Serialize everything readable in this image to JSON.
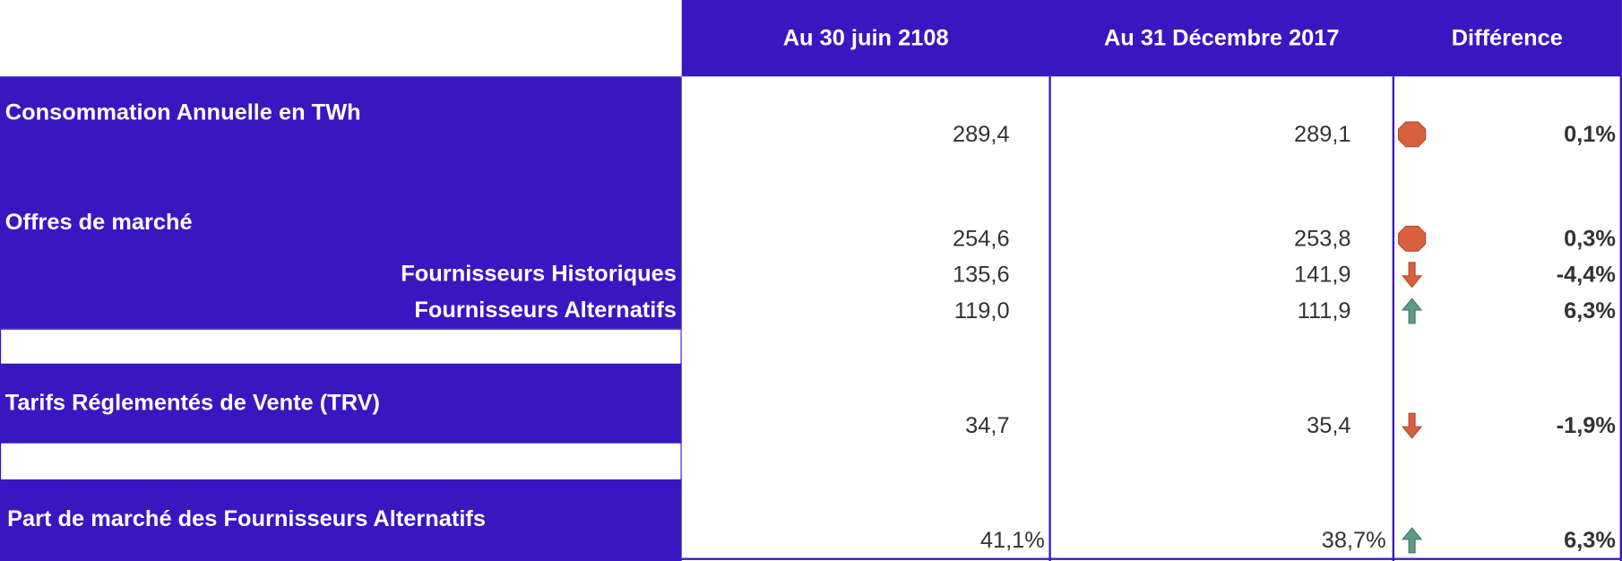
{
  "colors": {
    "header_bg": "#3A16C1",
    "text": "#333333",
    "label_text": "#FFFFFF",
    "neutral": "#D9603F",
    "down": "#D9603F",
    "up": "#5E9C86"
  },
  "header": {
    "col1": "Au 30 juin 2108",
    "col2": "Au 31 Décembre 2017",
    "col3": "Différence"
  },
  "rows": {
    "consommation": {
      "label": "Consommation Annuelle en TWh",
      "v1": "289,4",
      "v2": "289,1",
      "trend": "neutral-circle-icon",
      "diff": "0,1%"
    },
    "offres": {
      "label": "Offres de marché",
      "v1": "254,6",
      "v2": "253,8",
      "trend": "neutral-circle-icon",
      "diff": "0,3%"
    },
    "historiques": {
      "label": "Fournisseurs Historiques",
      "v1": "135,6",
      "v2": "141,9",
      "trend": "arrow-down-icon",
      "diff": "-4,4%"
    },
    "alternatifs": {
      "label": "Fournisseurs Alternatifs",
      "v1": "119,0",
      "v2": "111,9",
      "trend": "arrow-up-icon",
      "diff": "6,3%"
    },
    "trv": {
      "label": "Tarifs Réglementés de Vente (TRV)",
      "v1": "34,7",
      "v2": "35,4",
      "trend": "arrow-down-icon",
      "diff": "-1,9%"
    },
    "part": {
      "label": "Part de marché des Fournisseurs Alternatifs",
      "v1": "41,1%",
      "v2": "38,7%",
      "trend": "arrow-up-icon",
      "diff": "6,3%"
    }
  }
}
